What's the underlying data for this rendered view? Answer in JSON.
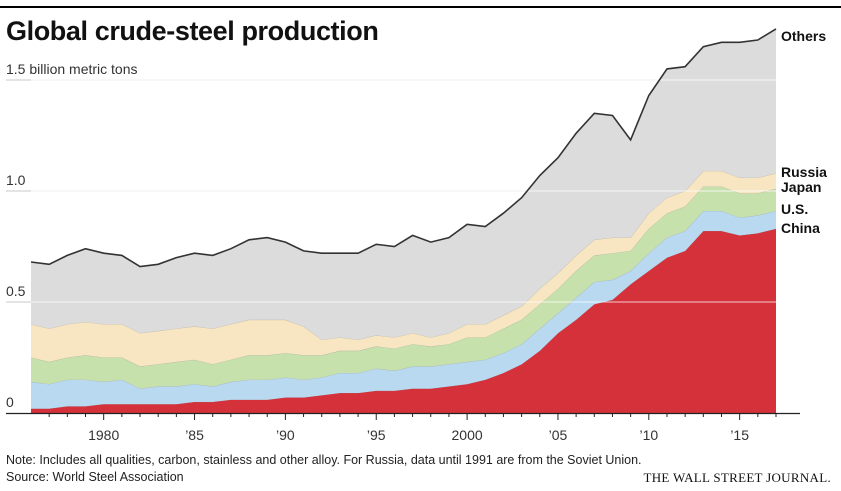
{
  "header": {
    "title": "Global crude-steel production"
  },
  "chart_data": {
    "type": "area",
    "stacked": true,
    "title": "Global crude-steel production",
    "ylabel": "1.5 billion metric tons",
    "ylim": [
      0,
      1.65
    ],
    "y_ticks": [
      0,
      0.5,
      1.0,
      1.5
    ],
    "y_tick_labels": [
      "0",
      "0.5",
      "1.0",
      "1.5 billion metric tons"
    ],
    "x_ticks": [
      1980,
      1985,
      1990,
      1995,
      2000,
      2005,
      2010,
      2015
    ],
    "x_tick_labels": [
      "1980",
      "’85",
      "’90",
      "’95",
      "2000",
      "’05",
      "’10",
      "’15"
    ],
    "xlim": [
      1976,
      2017
    ],
    "grid": true,
    "x": [
      1976,
      1977,
      1978,
      1979,
      1980,
      1981,
      1982,
      1983,
      1984,
      1985,
      1986,
      1987,
      1988,
      1989,
      1990,
      1991,
      1992,
      1993,
      1994,
      1995,
      1996,
      1997,
      1998,
      1999,
      2000,
      2001,
      2002,
      2003,
      2004,
      2005,
      2006,
      2007,
      2008,
      2009,
      2010,
      2011,
      2012,
      2013,
      2014,
      2015,
      2016,
      2017
    ],
    "series": [
      {
        "name": "China",
        "color": "#d4313b",
        "values": [
          0.02,
          0.02,
          0.03,
          0.03,
          0.04,
          0.04,
          0.04,
          0.04,
          0.04,
          0.05,
          0.05,
          0.06,
          0.06,
          0.06,
          0.07,
          0.07,
          0.08,
          0.09,
          0.09,
          0.1,
          0.1,
          0.11,
          0.11,
          0.12,
          0.13,
          0.15,
          0.18,
          0.22,
          0.28,
          0.36,
          0.42,
          0.49,
          0.51,
          0.58,
          0.64,
          0.7,
          0.73,
          0.82,
          0.82,
          0.8,
          0.81,
          0.83
        ]
      },
      {
        "name": "U.S.",
        "color": "#b9d9f1",
        "values": [
          0.12,
          0.11,
          0.12,
          0.12,
          0.1,
          0.11,
          0.07,
          0.08,
          0.08,
          0.08,
          0.07,
          0.08,
          0.09,
          0.09,
          0.09,
          0.08,
          0.08,
          0.09,
          0.09,
          0.1,
          0.09,
          0.1,
          0.1,
          0.1,
          0.1,
          0.09,
          0.09,
          0.09,
          0.1,
          0.09,
          0.1,
          0.1,
          0.09,
          0.06,
          0.08,
          0.09,
          0.09,
          0.09,
          0.09,
          0.08,
          0.08,
          0.08
        ]
      },
      {
        "name": "Japan",
        "color": "#c7e1ad",
        "values": [
          0.11,
          0.1,
          0.1,
          0.11,
          0.11,
          0.1,
          0.1,
          0.1,
          0.11,
          0.11,
          0.1,
          0.1,
          0.11,
          0.11,
          0.11,
          0.11,
          0.1,
          0.1,
          0.1,
          0.1,
          0.1,
          0.1,
          0.09,
          0.09,
          0.11,
          0.1,
          0.11,
          0.11,
          0.11,
          0.11,
          0.12,
          0.12,
          0.12,
          0.09,
          0.11,
          0.11,
          0.11,
          0.11,
          0.11,
          0.11,
          0.1,
          0.1
        ]
      },
      {
        "name": "Russia",
        "color": "#f7e6c1",
        "values": [
          0.15,
          0.15,
          0.15,
          0.15,
          0.15,
          0.15,
          0.15,
          0.15,
          0.15,
          0.15,
          0.16,
          0.16,
          0.16,
          0.16,
          0.15,
          0.13,
          0.07,
          0.06,
          0.05,
          0.05,
          0.05,
          0.05,
          0.04,
          0.05,
          0.06,
          0.06,
          0.06,
          0.06,
          0.07,
          0.07,
          0.07,
          0.07,
          0.07,
          0.06,
          0.07,
          0.07,
          0.07,
          0.07,
          0.07,
          0.07,
          0.07,
          0.07
        ]
      },
      {
        "name": "Others",
        "color": "#dcdcdc",
        "values": [
          0.28,
          0.29,
          0.31,
          0.33,
          0.32,
          0.31,
          0.3,
          0.3,
          0.32,
          0.33,
          0.33,
          0.34,
          0.36,
          0.37,
          0.35,
          0.34,
          0.39,
          0.38,
          0.39,
          0.41,
          0.41,
          0.44,
          0.43,
          0.43,
          0.45,
          0.44,
          0.46,
          0.49,
          0.51,
          0.52,
          0.55,
          0.57,
          0.55,
          0.44,
          0.53,
          0.58,
          0.56,
          0.56,
          0.58,
          0.61,
          0.62,
          0.65
        ]
      }
    ]
  },
  "footer": {
    "note": "Note: Includes all qualities, carbon, stainless and other alloy. For Russia, data until 1991 are from the Soviet Union.",
    "source": "Source: World Steel Association",
    "brand": "THE WALL STREET JOURNAL."
  }
}
